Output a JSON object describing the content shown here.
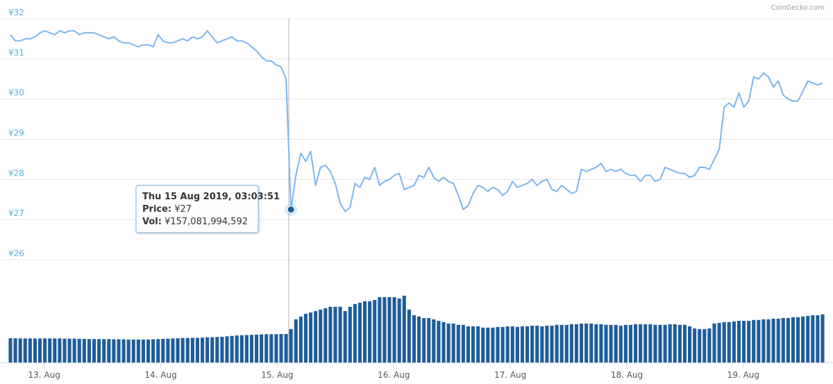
{
  "credit": "CoinGecko.com",
  "chart_data": [
    {
      "type": "line",
      "name": "Price",
      "color": "#7cb5ec",
      "xlim": [
        12.71,
        19.68
      ],
      "ylim": [
        26,
        32
      ],
      "yticks": [
        {
          "value": 26,
          "label": "¥26"
        },
        {
          "value": 27,
          "label": "¥27"
        },
        {
          "value": 28,
          "label": "¥28"
        },
        {
          "value": 29,
          "label": "¥29"
        },
        {
          "value": 30,
          "label": "¥30"
        },
        {
          "value": 31,
          "label": "¥31"
        },
        {
          "value": 32,
          "label": "¥32"
        }
      ],
      "grid": true,
      "values": [
        31.6,
        31.45,
        31.45,
        31.5,
        31.5,
        31.55,
        31.65,
        31.7,
        31.65,
        31.6,
        31.7,
        31.65,
        31.7,
        31.7,
        31.6,
        31.65,
        31.65,
        31.65,
        31.6,
        31.55,
        31.5,
        31.55,
        31.45,
        31.4,
        31.4,
        31.35,
        31.3,
        31.35,
        31.35,
        31.3,
        31.6,
        31.45,
        31.4,
        31.4,
        31.45,
        31.5,
        31.45,
        31.55,
        31.5,
        31.55,
        31.7,
        31.55,
        31.4,
        31.45,
        31.5,
        31.55,
        31.45,
        31.45,
        31.4,
        31.3,
        31.2,
        31.05,
        30.95,
        30.95,
        30.85,
        30.8,
        30.5,
        27.25,
        28.1,
        28.65,
        28.45,
        28.7,
        27.85,
        28.3,
        28.35,
        28.2,
        27.9,
        27.4,
        27.2,
        27.3,
        27.9,
        27.8,
        28.05,
        28.0,
        28.3,
        27.85,
        27.95,
        28.0,
        28.1,
        28.15,
        27.75,
        27.8,
        27.85,
        28.1,
        28.05,
        28.3,
        28.05,
        27.95,
        28.05,
        27.95,
        27.9,
        27.6,
        27.25,
        27.35,
        27.65,
        27.85,
        27.8,
        27.7,
        27.8,
        27.75,
        27.6,
        27.7,
        27.95,
        27.8,
        27.85,
        27.9,
        28.0,
        27.85,
        27.95,
        28.0,
        27.75,
        27.7,
        27.85,
        27.75,
        27.65,
        27.7,
        28.25,
        28.2,
        28.25,
        28.3,
        28.4,
        28.2,
        28.25,
        28.2,
        28.25,
        28.15,
        28.1,
        28.1,
        27.95,
        28.1,
        28.1,
        27.95,
        28.0,
        28.3,
        28.25,
        28.2,
        28.15,
        28.15,
        28.05,
        28.1,
        28.3,
        28.3,
        28.25,
        28.5,
        28.75,
        29.8,
        29.9,
        29.8,
        30.15,
        29.8,
        29.95,
        30.55,
        30.5,
        30.65,
        30.55,
        30.3,
        30.45,
        30.1,
        30.0,
        29.95,
        29.95,
        30.2,
        30.45,
        30.4,
        30.35,
        30.4
      ],
      "tooltip": {
        "date": "Thu 15 Aug 2019, 03:03:51",
        "price_label": "Price:",
        "price": "¥27",
        "vol_label": "Vol:",
        "vol": "¥157,081,994,592"
      }
    },
    {
      "type": "bar",
      "name": "Volume",
      "color": "#1f5d99",
      "xlim": [
        12.71,
        19.68
      ],
      "ylim": [
        0,
        405000000000.0
      ],
      "xticks": [
        {
          "value": 13,
          "label": "13. Aug"
        },
        {
          "value": 14,
          "label": "14. Aug"
        },
        {
          "value": 15,
          "label": "15. Aug"
        },
        {
          "value": 16,
          "label": "16. Aug"
        },
        {
          "value": 17,
          "label": "17. Aug"
        },
        {
          "value": 18,
          "label": "18. Aug"
        },
        {
          "value": 19,
          "label": "19. Aug"
        }
      ],
      "values": [
        114000000000.0,
        114000000000.0,
        113000000000.0,
        113000000000.0,
        113000000000.0,
        113000000000.0,
        113000000000.0,
        113000000000.0,
        113000000000.0,
        113000000000.0,
        113000000000.0,
        112000000000.0,
        112000000000.0,
        112000000000.0,
        111000000000.0,
        111000000000.0,
        110000000000.0,
        110000000000.0,
        110000000000.0,
        110000000000.0,
        110000000000.0,
        109000000000.0,
        109000000000.0,
        109000000000.0,
        108000000000.0,
        108000000000.0,
        108000000000.0,
        108000000000.0,
        108000000000.0,
        109000000000.0,
        110000000000.0,
        111000000000.0,
        112000000000.0,
        113000000000.0,
        114000000000.0,
        115000000000.0,
        115000000000.0,
        116000000000.0,
        116000000000.0,
        117000000000.0,
        118000000000.0,
        119000000000.0,
        120000000000.0,
        121000000000.0,
        123000000000.0,
        125000000000.0,
        127000000000.0,
        128000000000.0,
        129000000000.0,
        130000000000.0,
        131000000000.0,
        132000000000.0,
        133000000000.0,
        133000000000.0,
        133000000000.0,
        134000000000.0,
        134000000000.0,
        157081994592,
        203000000000.0,
        216000000000.0,
        229000000000.0,
        235000000000.0,
        242000000000.0,
        249000000000.0,
        255000000000.0,
        262000000000.0,
        262000000000.0,
        262000000000.0,
        242000000000.0,
        262000000000.0,
        275000000000.0,
        281000000000.0,
        288000000000.0,
        288000000000.0,
        294000000000.0,
        307000000000.0,
        307000000000.0,
        307000000000.0,
        307000000000.0,
        301000000000.0,
        314000000000.0,
        249000000000.0,
        222000000000.0,
        216000000000.0,
        209000000000.0,
        209000000000.0,
        203000000000.0,
        196000000000.0,
        190000000000.0,
        183000000000.0,
        183000000000.0,
        177000000000.0,
        177000000000.0,
        170000000000.0,
        170000000000.0,
        170000000000.0,
        164000000000.0,
        164000000000.0,
        164000000000.0,
        167000000000.0,
        167000000000.0,
        170000000000.0,
        170000000000.0,
        167000000000.0,
        170000000000.0,
        170000000000.0,
        173000000000.0,
        173000000000.0,
        170000000000.0,
        173000000000.0,
        173000000000.0,
        177000000000.0,
        177000000000.0,
        177000000000.0,
        180000000000.0,
        180000000000.0,
        183000000000.0,
        183000000000.0,
        183000000000.0,
        180000000000.0,
        180000000000.0,
        177000000000.0,
        177000000000.0,
        177000000000.0,
        173000000000.0,
        177000000000.0,
        177000000000.0,
        180000000000.0,
        180000000000.0,
        180000000000.0,
        180000000000.0,
        177000000000.0,
        177000000000.0,
        177000000000.0,
        180000000000.0,
        180000000000.0,
        177000000000.0,
        177000000000.0,
        170000000000.0,
        160000000000.0,
        157000000000.0,
        157000000000.0,
        160000000000.0,
        183000000000.0,
        186000000000.0,
        190000000000.0,
        190000000000.0,
        193000000000.0,
        196000000000.0,
        196000000000.0,
        196000000000.0,
        200000000000.0,
        200000000000.0,
        203000000000.0,
        203000000000.0,
        206000000000.0,
        206000000000.0,
        209000000000.0,
        209000000000.0,
        213000000000.0,
        213000000000.0,
        216000000000.0,
        219000000000.0,
        222000000000.0,
        222000000000.0,
        226000000000.0
      ]
    }
  ]
}
